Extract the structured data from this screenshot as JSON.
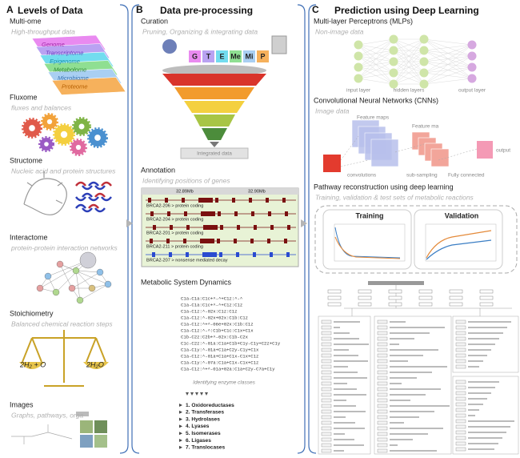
{
  "panels": [
    {
      "letter": "A",
      "title": "Levels of Data",
      "sections": [
        {
          "title": "Multi-ome",
          "subtitle": "High-throughput data",
          "layers": [
            "Genome",
            "Transcriptome",
            "Epigenome",
            "Metabolome",
            "Microbiome",
            "Proteome"
          ]
        },
        {
          "title": "Fluxome",
          "subtitle": "fluxes and balances"
        },
        {
          "title": "Structome",
          "subtitle": "Nucleic acid and protein structures"
        },
        {
          "title": "Interactome",
          "subtitle": "protein-protein interaction networks"
        },
        {
          "title": "Stoichiometry",
          "subtitle": "Balanced chemical reaction steps",
          "reactants": "2H₂ + O",
          "product": "2H₂O"
        },
        {
          "title": "Images",
          "subtitle": "Graphs, pathways, orga"
        }
      ]
    },
    {
      "letter": "B",
      "title": "Data pre-processing",
      "sections": [
        {
          "title": "Curation",
          "subtitle": "Pruning, Organizing & integrating data",
          "sources": [
            "G",
            "T",
            "E",
            "Me",
            "Mi",
            "P"
          ],
          "result": "Integrated data"
        },
        {
          "title": "Annotation",
          "subtitle": "Identifying positions of genes",
          "scale": [
            "32.89Mb",
            "32.90Mb"
          ],
          "transcripts": [
            "BRCA2-206 > protein coding",
            "BRCA2-204 > protein coding",
            "BRCA2-201 > protein coding",
            "BRCA2-211 > protein coding",
            "BRCA2-207 > nonsense mediated decay"
          ]
        },
        {
          "title": "Metabolic System Dynamics",
          "equations": [
            "C1a-C1a:C1c+^-^+C1z:^-^",
            "C1a-C1a:C1c+^-^+C1z:C1z",
            "C1a-C1z:^-02x:C1z:C1z",
            "C1a-C1z:^-02x+02x:C1b:C1z",
            "C1a-C1z:^+^-06e+02x:C1b:C1z",
            "C1a-C1z:^-^:C1b+C1c:C1x+C1x",
            "C1b-C2z:C2b+^-02x:C1b-C2x",
            "C1c-C2z:^-01a:C1a+C1b+C1y-C1y+C2z+C1y",
            "C1a-C1y:^-01a+C1a+C2y-C1y+C1x",
            "C1a-C1z:^-01a+C1a+C1x-C1x+C1z",
            "C1a-C1y:^-07a:C1a+C1x-C1x+C1z",
            "C1a-C1z:^+^-01a+02a:C1a+C2y-C7a+C1y"
          ],
          "caption": "Identifying enzyme classes",
          "enzyme_classes": [
            "1. Oxidoreductases",
            "2. Transferases",
            "3. Hydrolases",
            "4. Lyases",
            "5. Isomerases",
            "6. Ligases",
            "7. Translocases"
          ]
        }
      ]
    },
    {
      "letter": "C",
      "title": "Prediction using Deep Learning",
      "sections": [
        {
          "title": "Multi-layer Perceptrons (MLPs)",
          "subtitle": "Non-image data",
          "layers": [
            "input layer",
            "hidden layers",
            "output layer"
          ]
        },
        {
          "title": "Convolutional Neural Networks (CNNs)",
          "subtitle": "Image data",
          "labels": [
            "Feature maps",
            "Feature ma",
            "convolutions",
            "sub-sampling",
            "Fully connected",
            "output"
          ]
        },
        {
          "title": "Pathway reconstruction using deep learning",
          "subtitle": "Training, validation & test sets of metabolic reactions",
          "plots": [
            "Training",
            "Validation"
          ]
        }
      ]
    }
  ]
}
